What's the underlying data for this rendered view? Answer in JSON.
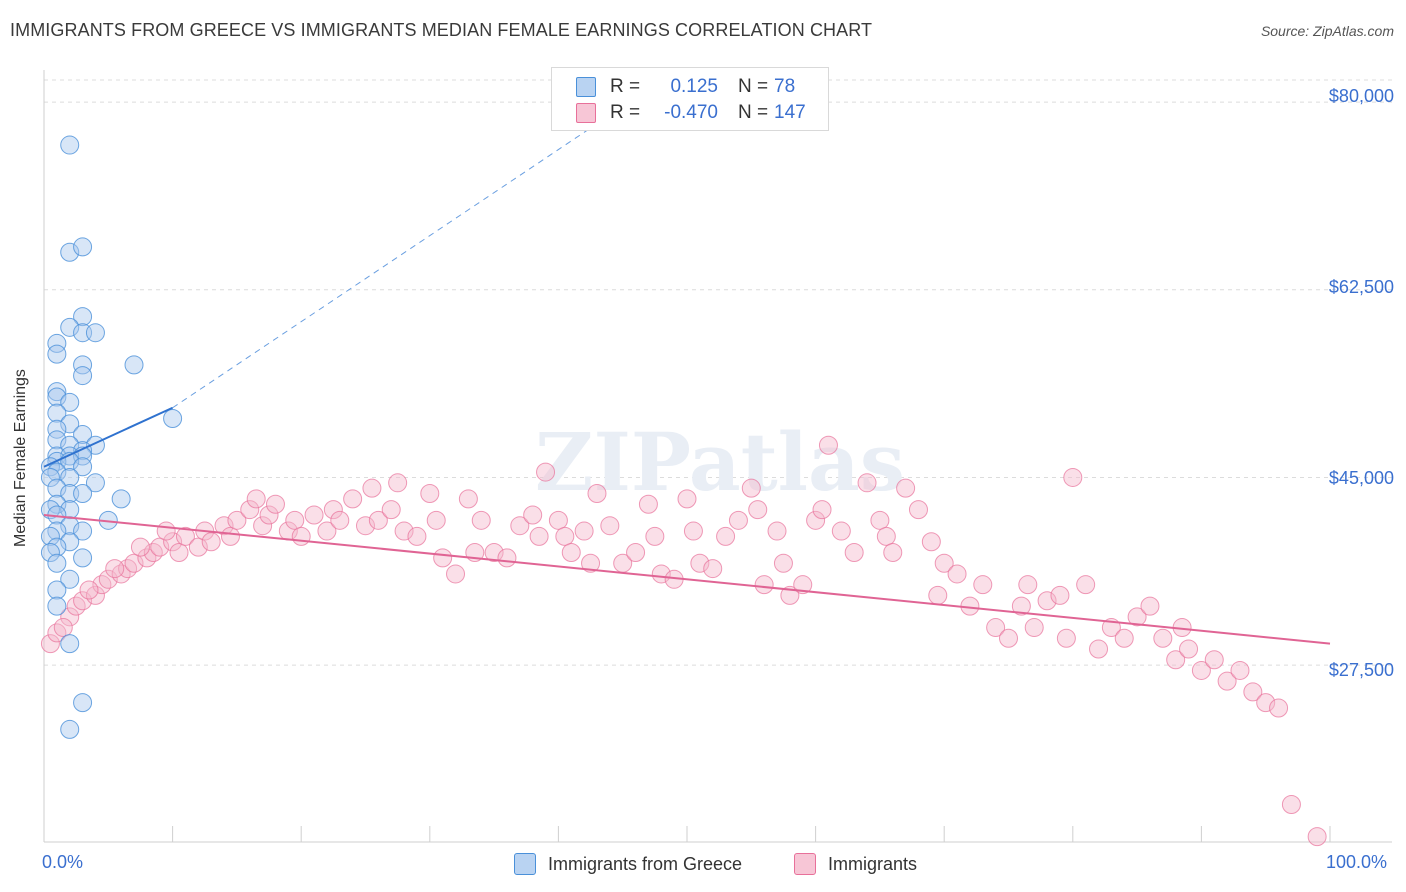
{
  "title": "IMMIGRANTS FROM GREECE VS IMMIGRANTS MEDIAN FEMALE EARNINGS CORRELATION CHART",
  "source": "Source: ZipAtlas.com",
  "watermark": "ZIPatlas",
  "colors": {
    "blue": "#4a90d9",
    "blue_fill": "#a9c8ee",
    "pink": "#e8709a",
    "pink_fill": "#f4b9cc",
    "axis_text": "#3a6fcf"
  },
  "legend": {
    "rows": [
      {
        "r_label": "R =",
        "r_value": "0.125",
        "n_label": "N =",
        "n_value": "78"
      },
      {
        "r_label": "R =",
        "r_value": "-0.470",
        "n_label": "N =",
        "n_value": "147"
      }
    ]
  },
  "bottom_legend": {
    "series1": "Immigrants from Greece",
    "series2": "Immigrants"
  },
  "chart_data": {
    "type": "scatter",
    "ylabel": "Median Female Earnings",
    "xlabel": "",
    "x_tick_labels": [
      "0.0%",
      "100.0%"
    ],
    "y_tick_labels": [
      "$27,500",
      "$45,000",
      "$62,500",
      "$80,000"
    ],
    "y_ticks": [
      27500,
      45000,
      62500,
      80000
    ],
    "xlim": [
      0,
      100
    ],
    "ylim": [
      11000,
      83000
    ],
    "series": [
      {
        "name": "Immigrants from Greece",
        "color": "#4a90d9",
        "trend": {
          "x0": 0,
          "y0": 46000,
          "x1": 10,
          "y1": 51500,
          "dashed_to_x": 48,
          "dashed_to_y": 82000
        },
        "points": [
          [
            2,
            76
          ],
          [
            2,
            66
          ],
          [
            3,
            66.5
          ],
          [
            3,
            60
          ],
          [
            2,
            59
          ],
          [
            3,
            58.5
          ],
          [
            1,
            57.5
          ],
          [
            4,
            58.5
          ],
          [
            1,
            56.5
          ],
          [
            3,
            55.5
          ],
          [
            7,
            55.5
          ],
          [
            3,
            54.5
          ],
          [
            1,
            53
          ],
          [
            1,
            52.5
          ],
          [
            2,
            52
          ],
          [
            1,
            51
          ],
          [
            10,
            50.5
          ],
          [
            2,
            50
          ],
          [
            3,
            49
          ],
          [
            1,
            49.5
          ],
          [
            1,
            48.5
          ],
          [
            4,
            48
          ],
          [
            2,
            48
          ],
          [
            3,
            47.5
          ],
          [
            1,
            47
          ],
          [
            2,
            47
          ],
          [
            3,
            47
          ],
          [
            1,
            46.5
          ],
          [
            2,
            46.5
          ],
          [
            3,
            46
          ],
          [
            0.5,
            46
          ],
          [
            1,
            45.5
          ],
          [
            2,
            45
          ],
          [
            0.5,
            45
          ],
          [
            4,
            44.5
          ],
          [
            1,
            44
          ],
          [
            2,
            43.5
          ],
          [
            3,
            43.5
          ],
          [
            6,
            43
          ],
          [
            1,
            42.5
          ],
          [
            2,
            42
          ],
          [
            0.5,
            42
          ],
          [
            1,
            41.5
          ],
          [
            5,
            41
          ],
          [
            2,
            40.5
          ],
          [
            1,
            40
          ],
          [
            3,
            40
          ],
          [
            0.5,
            39.5
          ],
          [
            2,
            39
          ],
          [
            1,
            38.5
          ],
          [
            0.5,
            38
          ],
          [
            3,
            37.5
          ],
          [
            1,
            37
          ],
          [
            2,
            35.5
          ],
          [
            1,
            34.5
          ],
          [
            1,
            33
          ],
          [
            2,
            29.5
          ],
          [
            3,
            24
          ],
          [
            2,
            21.5
          ]
        ]
      },
      {
        "name": "Immigrants",
        "color": "#e8709a",
        "trend": {
          "x0": 0,
          "y0": 41500,
          "x1": 100,
          "y1": 29500
        },
        "points": [
          [
            0.5,
            29.5
          ],
          [
            1,
            30.5
          ],
          [
            2,
            32
          ],
          [
            2.5,
            33
          ],
          [
            3,
            33.5
          ],
          [
            4,
            34
          ],
          [
            4.5,
            35
          ],
          [
            5,
            35.5
          ],
          [
            6,
            36
          ],
          [
            6.5,
            36.5
          ],
          [
            7,
            37
          ],
          [
            8,
            37.5
          ],
          [
            8.5,
            38
          ],
          [
            9,
            38.5
          ],
          [
            10,
            39
          ],
          [
            10.5,
            38
          ],
          [
            11,
            39.5
          ],
          [
            12,
            38.5
          ],
          [
            12.5,
            40
          ],
          [
            13,
            39
          ],
          [
            14,
            40.5
          ],
          [
            14.5,
            39.5
          ],
          [
            15,
            41
          ],
          [
            16,
            42
          ],
          [
            16.5,
            43
          ],
          [
            17,
            40.5
          ],
          [
            17.5,
            41.5
          ],
          [
            18,
            42.5
          ],
          [
            19,
            40
          ],
          [
            19.5,
            41
          ],
          [
            20,
            39.5
          ],
          [
            21,
            41.5
          ],
          [
            22,
            40
          ],
          [
            22.5,
            42
          ],
          [
            23,
            41
          ],
          [
            24,
            43
          ],
          [
            25,
            40.5
          ],
          [
            25.5,
            44
          ],
          [
            26,
            41
          ],
          [
            27,
            42
          ],
          [
            27.5,
            44.5
          ],
          [
            28,
            40
          ],
          [
            29,
            39.5
          ],
          [
            30,
            43.5
          ],
          [
            30.5,
            41
          ],
          [
            31,
            37.5
          ],
          [
            32,
            36
          ],
          [
            33,
            43
          ],
          [
            33.5,
            38
          ],
          [
            34,
            41
          ],
          [
            35,
            38
          ],
          [
            36,
            37.5
          ],
          [
            37,
            40.5
          ],
          [
            38,
            41.5
          ],
          [
            38.5,
            39.5
          ],
          [
            39,
            45.5
          ],
          [
            40,
            41
          ],
          [
            40.5,
            39.5
          ],
          [
            41,
            38
          ],
          [
            42,
            40
          ],
          [
            42.5,
            37
          ],
          [
            43,
            43.5
          ],
          [
            44,
            40.5
          ],
          [
            45,
            37
          ],
          [
            46,
            38
          ],
          [
            47,
            42.5
          ],
          [
            47.5,
            39.5
          ],
          [
            48,
            36
          ],
          [
            49,
            35.5
          ],
          [
            50,
            43
          ],
          [
            50.5,
            40
          ],
          [
            51,
            37
          ],
          [
            52,
            36.5
          ],
          [
            53,
            39.5
          ],
          [
            54,
            41
          ],
          [
            55,
            44
          ],
          [
            55.5,
            42
          ],
          [
            56,
            35
          ],
          [
            57,
            40
          ],
          [
            57.5,
            37
          ],
          [
            58,
            34
          ],
          [
            59,
            35
          ],
          [
            60,
            41
          ],
          [
            60.5,
            42
          ],
          [
            61,
            48
          ],
          [
            62,
            40
          ],
          [
            63,
            38
          ],
          [
            64,
            44.5
          ],
          [
            65,
            41
          ],
          [
            65.5,
            39.5
          ],
          [
            66,
            38
          ],
          [
            67,
            44
          ],
          [
            68,
            42
          ],
          [
            69,
            39
          ],
          [
            69.5,
            34
          ],
          [
            70,
            37
          ],
          [
            71,
            36
          ],
          [
            72,
            33
          ],
          [
            73,
            35
          ],
          [
            74,
            31
          ],
          [
            75,
            30
          ],
          [
            76,
            33
          ],
          [
            76.5,
            35
          ],
          [
            77,
            31
          ],
          [
            78,
            33.5
          ],
          [
            79,
            34
          ],
          [
            79.5,
            30
          ],
          [
            80,
            45
          ],
          [
            81,
            35
          ],
          [
            82,
            29
          ],
          [
            83,
            31
          ],
          [
            84,
            30
          ],
          [
            85,
            32
          ],
          [
            86,
            33
          ],
          [
            87,
            30
          ],
          [
            88,
            28
          ],
          [
            88.5,
            31
          ],
          [
            89,
            29
          ],
          [
            90,
            27
          ],
          [
            91,
            28
          ],
          [
            92,
            26
          ],
          [
            93,
            27
          ],
          [
            94,
            25
          ],
          [
            95,
            24
          ],
          [
            96,
            23.5
          ],
          [
            97,
            14.5
          ],
          [
            99,
            11.5
          ],
          [
            1.5,
            31
          ],
          [
            3.5,
            34.5
          ],
          [
            5.5,
            36.5
          ],
          [
            7.5,
            38.5
          ],
          [
            9.5,
            40
          ]
        ]
      }
    ]
  }
}
